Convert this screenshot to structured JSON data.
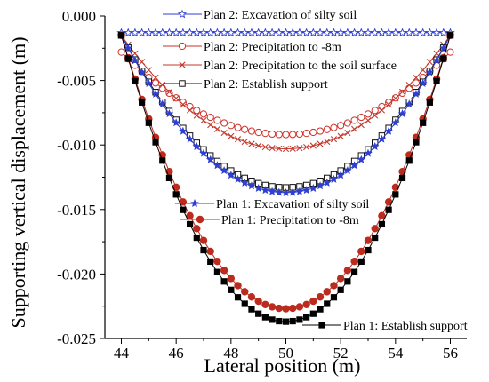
{
  "chart_data": {
    "type": "line",
    "title": "",
    "xlabel": "Lateral position (m)",
    "ylabel": "Supporting vertical displacement (m)",
    "xlim": [
      43.4,
      56.6
    ],
    "ylim": [
      -0.025,
      0.0
    ],
    "xticks": [
      44,
      46,
      48,
      50,
      52,
      54,
      56
    ],
    "yticks": [
      0.0,
      -0.005,
      -0.01,
      -0.015,
      -0.02,
      -0.025
    ],
    "xtick_labels": [
      "44",
      "46",
      "48",
      "50",
      "52",
      "54",
      "56"
    ],
    "ytick_labels": [
      "0.000",
      "-0.005",
      "-0.010",
      "-0.015",
      "-0.020",
      "-0.025"
    ],
    "grid": false,
    "legend_placement": "inline",
    "x_range": [
      44,
      56
    ],
    "n_points": 49,
    "series": [
      {
        "name": "Plan 2: Excavation of silty soil",
        "color": "#2f3fd0",
        "marker": "star-open",
        "edge": -0.0013,
        "min": -0.0013
      },
      {
        "name": "Plan 2: Precipitation to -8m",
        "color": "#d0302a",
        "marker": "circle-open",
        "edge": -0.0028,
        "min": -0.0092
      },
      {
        "name": "Plan 2: Precipitation to the soil surface",
        "color": "#c33a2e",
        "marker": "x-cross",
        "edge": -0.0015,
        "min": -0.0103
      },
      {
        "name": "Plan 2: Establish support",
        "color": "#111111",
        "marker": "square-open",
        "edge": -0.0015,
        "min": -0.0133
      },
      {
        "name": "Plan 1: Excavation of silty soil",
        "color": "#2f3fd0",
        "marker": "star-filled",
        "edge": -0.0015,
        "min": -0.0137
      },
      {
        "name": "Plan 1: Precipitation to -8m",
        "color": "#bb2c1e",
        "marker": "circle-filled",
        "edge": -0.0015,
        "min": -0.0227
      },
      {
        "name": "Plan 1: Establish support",
        "color": "#000000",
        "marker": "square-filled",
        "edge": -0.0015,
        "min": -0.0237
      }
    ]
  }
}
